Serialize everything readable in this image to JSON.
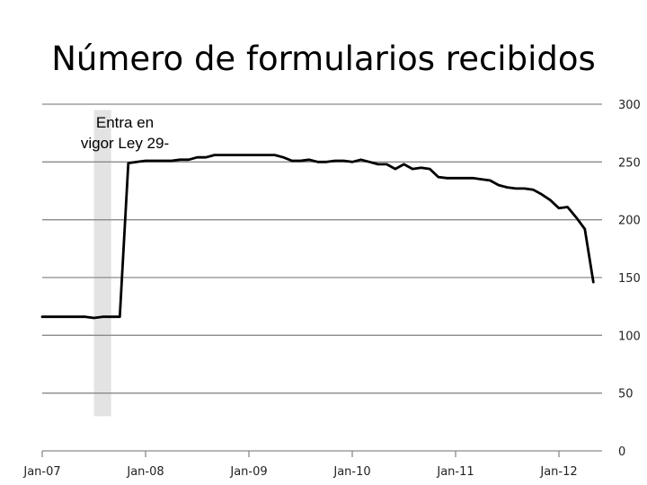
{
  "chart_data": {
    "type": "line",
    "title": "Número de formularios recibidos",
    "xlabel": "",
    "ylabel": "",
    "x_tick_labels": [
      "Jan-07",
      "Jan-08",
      "Jan-09",
      "Jan-10",
      "Jan-11",
      "Jan-12"
    ],
    "y_ticks": [
      0,
      50,
      100,
      150,
      200,
      250,
      300
    ],
    "ylim": [
      0,
      300
    ],
    "y_axis_position": "right",
    "grid": "horizontal",
    "legend": "none",
    "line_color": "#000000",
    "shading_color": "#e3e3e3",
    "annotation": "Entra en vigor Ley 29-",
    "annotation_lines": [
      "Entra en",
      "vigor Ley 29-"
    ],
    "shaded_period": {
      "from": "2007-07",
      "to": "2007-09",
      "y_from": 30,
      "y_to": 295
    },
    "series": [
      {
        "points": [
          [
            "2007-01",
            116
          ],
          [
            "2007-02",
            116
          ],
          [
            "2007-03",
            116
          ],
          [
            "2007-04",
            116
          ],
          [
            "2007-05",
            116
          ],
          [
            "2007-06",
            116
          ],
          [
            "2007-07",
            115
          ],
          [
            "2007-08",
            116
          ],
          [
            "2007-09",
            116
          ],
          [
            "2007-10",
            116
          ],
          [
            "2007-11",
            249
          ],
          [
            "2007-12",
            250
          ],
          [
            "2008-01",
            251
          ],
          [
            "2008-02",
            251
          ],
          [
            "2008-03",
            251
          ],
          [
            "2008-04",
            251
          ],
          [
            "2008-05",
            252
          ],
          [
            "2008-06",
            252
          ],
          [
            "2008-07",
            254
          ],
          [
            "2008-08",
            254
          ],
          [
            "2008-09",
            256
          ],
          [
            "2008-10",
            256
          ],
          [
            "2008-11",
            256
          ],
          [
            "2008-12",
            256
          ],
          [
            "2009-01",
            256
          ],
          [
            "2009-02",
            256
          ],
          [
            "2009-03",
            256
          ],
          [
            "2009-04",
            256
          ],
          [
            "2009-05",
            254
          ],
          [
            "2009-06",
            251
          ],
          [
            "2009-07",
            251
          ],
          [
            "2009-08",
            252
          ],
          [
            "2009-09",
            250
          ],
          [
            "2009-10",
            250
          ],
          [
            "2009-11",
            251
          ],
          [
            "2009-12",
            251
          ],
          [
            "2010-01",
            250
          ],
          [
            "2010-02",
            252
          ],
          [
            "2010-03",
            250
          ],
          [
            "2010-04",
            248
          ],
          [
            "2010-05",
            248
          ],
          [
            "2010-06",
            244
          ],
          [
            "2010-07",
            248
          ],
          [
            "2010-08",
            244
          ],
          [
            "2010-09",
            245
          ],
          [
            "2010-10",
            244
          ],
          [
            "2010-11",
            237
          ],
          [
            "2010-12",
            236
          ],
          [
            "2011-01",
            236
          ],
          [
            "2011-02",
            236
          ],
          [
            "2011-03",
            236
          ],
          [
            "2011-04",
            235
          ],
          [
            "2011-05",
            234
          ],
          [
            "2011-06",
            230
          ],
          [
            "2011-07",
            228
          ],
          [
            "2011-08",
            227
          ],
          [
            "2011-09",
            227
          ],
          [
            "2011-10",
            226
          ],
          [
            "2011-11",
            222
          ],
          [
            "2011-12",
            217
          ],
          [
            "2012-01",
            210
          ],
          [
            "2012-02",
            211
          ],
          [
            "2012-03",
            202
          ],
          [
            "2012-04",
            192
          ],
          [
            "2012-05",
            146
          ]
        ]
      }
    ]
  }
}
